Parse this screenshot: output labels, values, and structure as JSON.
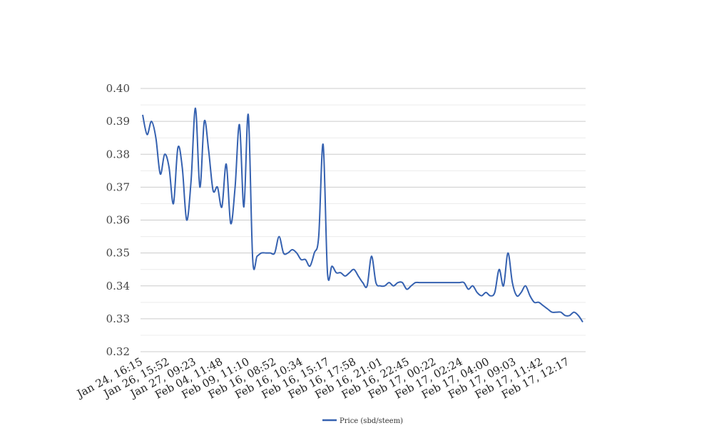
{
  "chart_data": {
    "type": "line",
    "title": "",
    "xlabel": "",
    "ylabel": "",
    "ylim": [
      0.32,
      0.4
    ],
    "yticks": [
      "0.40",
      "0.39",
      "0.38",
      "0.37",
      "0.36",
      "0.35",
      "0.34",
      "0.33",
      "0.32"
    ],
    "ytick_values": [
      0.4,
      0.39,
      0.38,
      0.37,
      0.36,
      0.35,
      0.34,
      0.33,
      0.32
    ],
    "x_tick_labels": [
      "Jan 24, 16:15",
      "Jan 26, 15:52",
      "Jan 27, 09:23",
      "Feb 04, 11:48",
      "Feb 09, 11:10",
      "Feb 16, 08:52",
      "Feb 16, 10:34",
      "Feb 16, 15:17",
      "Feb 16, 17:58",
      "Feb 16, 21:01",
      "Feb 16, 22:45",
      "Feb 17, 00:22",
      "Feb 17, 02:24",
      "Feb 17, 04:00",
      "Feb 17, 09:03",
      "Feb 17, 11:42",
      "Feb 17, 12:17"
    ],
    "grid": true,
    "legend_position": "bottom-center",
    "series": [
      {
        "name": "Price (sbd/steem)",
        "color": "#3561b0",
        "values": [
          0.392,
          0.386,
          0.39,
          0.385,
          0.374,
          0.38,
          0.376,
          0.365,
          0.382,
          0.376,
          0.36,
          0.372,
          0.394,
          0.37,
          0.39,
          0.381,
          0.369,
          0.37,
          0.364,
          0.377,
          0.359,
          0.37,
          0.389,
          0.364,
          0.392,
          0.348,
          0.349,
          0.35,
          0.35,
          0.35,
          0.35,
          0.355,
          0.35,
          0.35,
          0.351,
          0.35,
          0.348,
          0.348,
          0.346,
          0.35,
          0.355,
          0.383,
          0.344,
          0.346,
          0.344,
          0.344,
          0.343,
          0.344,
          0.345,
          0.343,
          0.341,
          0.34,
          0.349,
          0.341,
          0.34,
          0.34,
          0.341,
          0.34,
          0.341,
          0.341,
          0.339,
          0.34,
          0.341,
          0.341,
          0.341,
          0.341,
          0.341,
          0.341,
          0.341,
          0.341,
          0.341,
          0.341,
          0.341,
          0.341,
          0.339,
          0.34,
          0.338,
          0.337,
          0.338,
          0.337,
          0.338,
          0.345,
          0.34,
          0.35,
          0.341,
          0.337,
          0.338,
          0.34,
          0.337,
          0.335,
          0.335,
          0.334,
          0.333,
          0.332,
          0.332,
          0.332,
          0.331,
          0.331,
          0.332,
          0.331,
          0.329
        ]
      }
    ]
  }
}
